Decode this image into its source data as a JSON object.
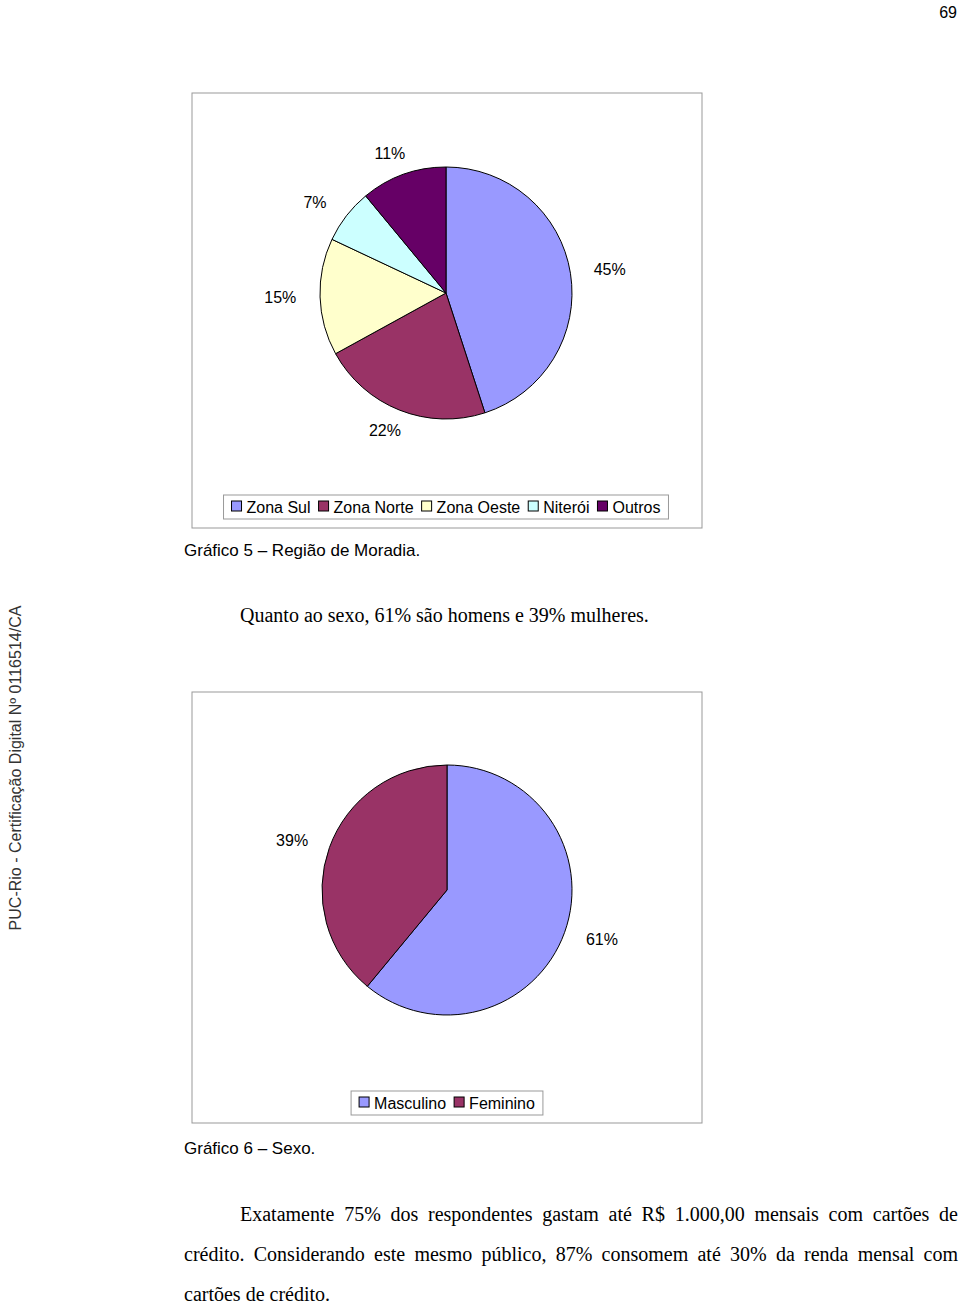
{
  "page_number": "69",
  "side_note": "PUC-Rio - Certificação Digital Nº 0116514/CA",
  "chart_data": [
    {
      "type": "pie",
      "title": "Gráfico 5 – Região de Moradia.",
      "categories": [
        "Zona Sul",
        "Zona Norte",
        "Zona Oeste",
        "Niterói",
        "Outros"
      ],
      "values": [
        45,
        22,
        15,
        7,
        11
      ],
      "value_labels": [
        "45%",
        "22%",
        "15%",
        "7%",
        "11%"
      ],
      "colors": [
        "#9999ff",
        "#993366",
        "#ffffcc",
        "#ccffff",
        "#660066"
      ],
      "data_labels": true,
      "legend": "bottom"
    },
    {
      "type": "pie",
      "title": "Gráfico 6 – Sexo.",
      "categories": [
        "Masculino",
        "Feminino"
      ],
      "values": [
        61,
        39
      ],
      "value_labels": [
        "61%",
        "39%"
      ],
      "colors": [
        "#9999ff",
        "#993366"
      ],
      "data_labels": true,
      "legend": "bottom"
    }
  ],
  "paragraphs": [
    "Quanto ao sexo, 61% são homens e 39% mulheres.",
    "Exatamente 75% dos respondentes gastam até R$ 1.000,00 mensais com cartões de crédito. Considerando este mesmo público, 87% consomem até 30% da renda mensal com cartões de crédito."
  ]
}
